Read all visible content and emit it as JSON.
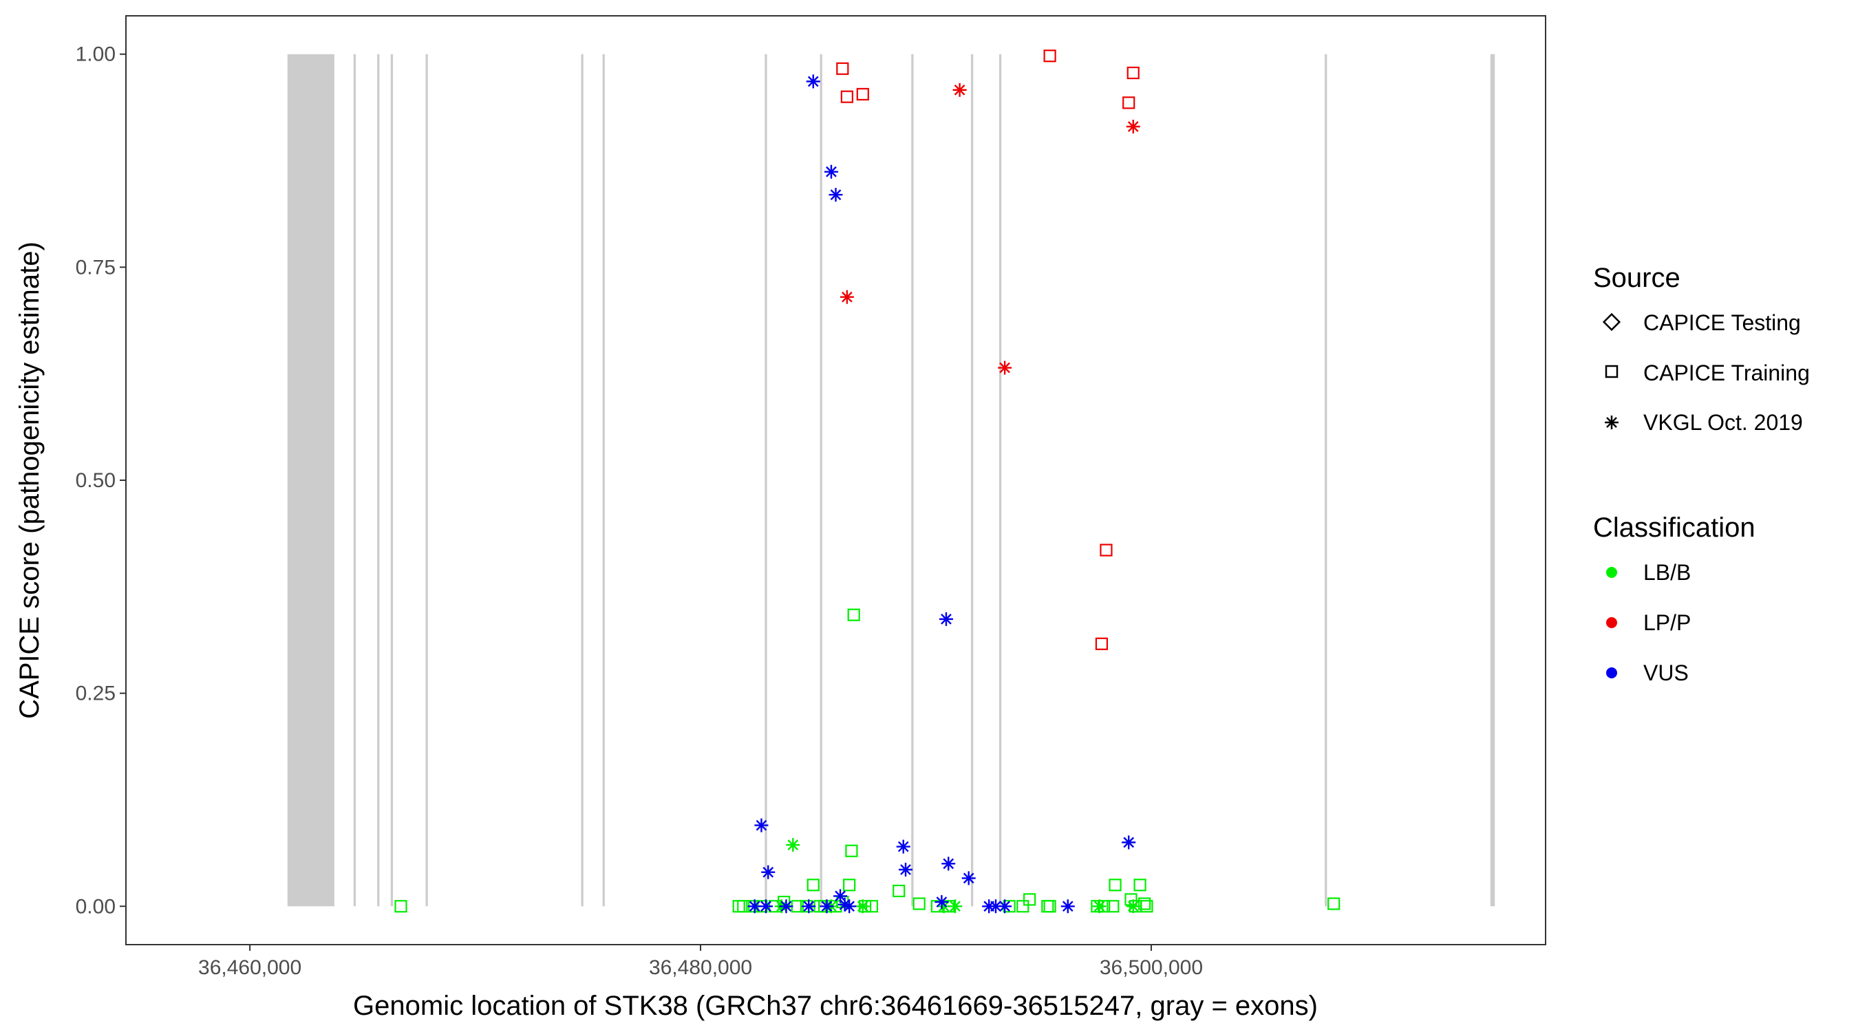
{
  "chart_data": {
    "type": "scatter",
    "title": "",
    "xlabel": "Genomic location of STK38 (GRCh37 chr6:36461669-36515247, gray = exons)",
    "ylabel": "CAPICE score (pathogenicity estimate)",
    "xlim": [
      36454500,
      36517500
    ],
    "ylim": [
      -0.045,
      1.045
    ],
    "x_ticks": [
      36460000,
      36480000,
      36500000
    ],
    "x_tick_labels": [
      "36,460,000",
      "36,480,000",
      "36,500,000"
    ],
    "y_ticks": [
      0,
      0.25,
      0.5,
      0.75,
      1.0
    ],
    "y_tick_labels": [
      "0.00",
      "0.25",
      "0.50",
      "0.75",
      "1.00"
    ],
    "grid": false,
    "exons": [
      [
        36461669,
        36463750
      ],
      [
        36464600,
        36464700
      ],
      [
        36465650,
        36465750
      ],
      [
        36466250,
        36466350
      ],
      [
        36467800,
        36467900
      ],
      [
        36474700,
        36474800
      ],
      [
        36475650,
        36475750
      ],
      [
        36482850,
        36482950
      ],
      [
        36485300,
        36485400
      ],
      [
        36489350,
        36489450
      ],
      [
        36492000,
        36492100
      ],
      [
        36493250,
        36493350
      ],
      [
        36507700,
        36507800
      ],
      [
        36515050,
        36515247
      ]
    ],
    "legend": {
      "source_title": "Source",
      "source_entries": [
        "CAPICE Testing",
        "CAPICE Training",
        "VKGL Oct. 2019"
      ],
      "classification_title": "Classification",
      "classification_entries": [
        "LB/B",
        "LP/P",
        "VUS"
      ]
    },
    "colors": {
      "LB/B": "#00ee00",
      "LP/P": "#ee0000",
      "VUS": "#0000ee",
      "exon": "#cccccc"
    },
    "series": [
      {
        "name": "CAPICE Training LB/B",
        "source": "CAPICE Training",
        "classification": "LB/B",
        "points": [
          [
            36466700,
            0.0
          ],
          [
            36481700,
            0.0
          ],
          [
            36481900,
            0.0
          ],
          [
            36482300,
            0.0
          ],
          [
            36482700,
            0.0
          ],
          [
            36483300,
            0.0
          ],
          [
            36483700,
            0.005
          ],
          [
            36484300,
            0.0
          ],
          [
            36484700,
            0.0
          ],
          [
            36485000,
            0.025
          ],
          [
            36485300,
            0.0
          ],
          [
            36485500,
            0.0
          ],
          [
            36486000,
            0.0
          ],
          [
            36486300,
            0.005
          ],
          [
            36486600,
            0.025
          ],
          [
            36486700,
            0.065
          ],
          [
            36486800,
            0.342
          ],
          [
            36487300,
            0.0
          ],
          [
            36487600,
            0.0
          ],
          [
            36488800,
            0.018
          ],
          [
            36489700,
            0.003
          ],
          [
            36490500,
            0.0
          ],
          [
            36491000,
            0.0
          ],
          [
            36493700,
            0.0
          ],
          [
            36494300,
            0.0
          ],
          [
            36494600,
            0.008
          ],
          [
            36495400,
            0.0
          ],
          [
            36495500,
            0.0
          ],
          [
            36497600,
            0.0
          ],
          [
            36497900,
            0.0
          ],
          [
            36498300,
            0.0
          ],
          [
            36498400,
            0.025
          ],
          [
            36499100,
            0.008
          ],
          [
            36499300,
            0.0
          ],
          [
            36499500,
            0.025
          ],
          [
            36499700,
            0.003
          ],
          [
            36499800,
            0.0
          ],
          [
            36508100,
            0.003
          ]
        ]
      },
      {
        "name": "CAPICE Training LP/P",
        "source": "CAPICE Training",
        "classification": "LP/P",
        "points": [
          [
            36486300,
            0.983
          ],
          [
            36486500,
            0.95
          ],
          [
            36487200,
            0.953
          ],
          [
            36495500,
            0.998
          ],
          [
            36497800,
            0.308
          ],
          [
            36498000,
            0.418
          ],
          [
            36499000,
            0.943
          ],
          [
            36499200,
            0.978
          ]
        ]
      },
      {
        "name": "VKGL Oct. 2019 LB/B",
        "source": "VKGL Oct. 2019",
        "classification": "LB/B",
        "points": [
          [
            36483600,
            0.0
          ],
          [
            36484100,
            0.072
          ],
          [
            36485800,
            0.0
          ],
          [
            36487200,
            0.0
          ],
          [
            36490800,
            0.0
          ],
          [
            36491300,
            0.0
          ],
          [
            36497700,
            0.0
          ],
          [
            36499200,
            0.0
          ]
        ]
      },
      {
        "name": "VKGL Oct. 2019 LP/P",
        "source": "VKGL Oct. 2019",
        "classification": "LP/P",
        "points": [
          [
            36486500,
            0.715
          ],
          [
            36491500,
            0.958
          ],
          [
            36493500,
            0.632
          ],
          [
            36499200,
            0.915
          ]
        ]
      },
      {
        "name": "VKGL Oct. 2019 VUS",
        "source": "VKGL Oct. 2019",
        "classification": "VUS",
        "points": [
          [
            36482400,
            0.0
          ],
          [
            36482900,
            0.0
          ],
          [
            36482700,
            0.095
          ],
          [
            36483000,
            0.04
          ],
          [
            36483800,
            0.0
          ],
          [
            36484800,
            0.0
          ],
          [
            36485000,
            0.968
          ],
          [
            36485600,
            0.0
          ],
          [
            36485800,
            0.862
          ],
          [
            36486000,
            0.835
          ],
          [
            36486200,
            0.012
          ],
          [
            36486400,
            0.002
          ],
          [
            36486600,
            0.0
          ],
          [
            36489000,
            0.07
          ],
          [
            36489100,
            0.043
          ],
          [
            36490700,
            0.005
          ],
          [
            36490900,
            0.337
          ],
          [
            36491000,
            0.05
          ],
          [
            36491900,
            0.033
          ],
          [
            36492800,
            0.0
          ],
          [
            36493100,
            0.0
          ],
          [
            36493500,
            0.0
          ],
          [
            36496300,
            0.0
          ],
          [
            36499000,
            0.075
          ]
        ]
      }
    ]
  }
}
